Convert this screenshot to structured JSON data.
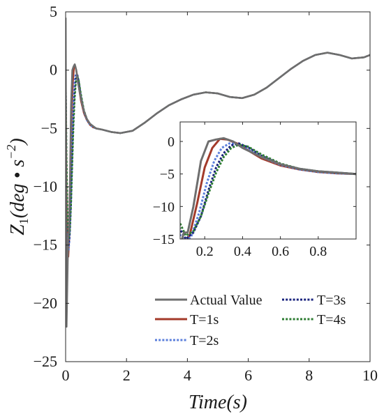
{
  "chart_data": {
    "type": "line",
    "xlabel": "Time(s)",
    "ylabel_main": "Z",
    "ylabel_sub": "1",
    "ylabel_paren": "(deg • s",
    "ylabel_sup": "−2",
    "ylabel_close": ")",
    "xlim": [
      0,
      10
    ],
    "ylim": [
      -25,
      5
    ],
    "xticks": [
      0,
      2,
      4,
      6,
      8,
      10
    ],
    "yticks": [
      -25,
      -20,
      -15,
      -10,
      -5,
      0,
      5
    ],
    "grid": false,
    "legend_position": "bottom-right",
    "series": [
      {
        "name": "Actual Value",
        "color": "#6e6e6e",
        "dash": "solid",
        "x": [
          0,
          0.03,
          0.05,
          0.07,
          0.09,
          0.11,
          0.14,
          0.18,
          0.22,
          0.26,
          0.3,
          0.35,
          0.4,
          0.5,
          0.6,
          0.7,
          0.8,
          0.9,
          1.0,
          1.2,
          1.5,
          1.8,
          2.2,
          2.6,
          3.0,
          3.4,
          3.8,
          4.2,
          4.6,
          5.0,
          5.4,
          5.8,
          6.2,
          6.6,
          7.0,
          7.4,
          7.8,
          8.2,
          8.6,
          9.0,
          9.4,
          9.8,
          10.0
        ],
        "y": [
          4.5,
          -22.0,
          -19.0,
          -16.0,
          -14.0,
          -14.0,
          -10.0,
          -3.0,
          0.0,
          0.3,
          0.5,
          0.0,
          -1.0,
          -2.4,
          -3.5,
          -4.2,
          -4.6,
          -4.8,
          -5.0,
          -5.1,
          -5.3,
          -5.4,
          -5.2,
          -4.5,
          -3.7,
          -3.0,
          -2.5,
          -2.1,
          -1.9,
          -2.0,
          -2.3,
          -2.4,
          -2.1,
          -1.5,
          -0.7,
          0.1,
          0.8,
          1.3,
          1.5,
          1.3,
          1.0,
          1.1,
          1.3
        ]
      },
      {
        "name": "T=1s",
        "color": "#a33a2a",
        "dash": "solid",
        "x": [
          0,
          0.03,
          0.06,
          0.09,
          0.12,
          0.16,
          0.2,
          0.24,
          0.28,
          0.32,
          0.37,
          0.42,
          0.5,
          0.6,
          0.7,
          0.8,
          0.9,
          1.0,
          1.2,
          1.5,
          1.8,
          2.2,
          2.6,
          3.0,
          3.4,
          3.8,
          4.2,
          4.6,
          5.0,
          5.4,
          5.8,
          6.2,
          6.6,
          7.0,
          7.4,
          7.8,
          8.2,
          8.6,
          9.0,
          9.4,
          9.8,
          10.0
        ],
        "y": [
          0.0,
          -10.0,
          -15.0,
          -16.0,
          -14.5,
          -9.5,
          -4.0,
          -1.0,
          0.4,
          0.3,
          -0.3,
          -1.2,
          -2.6,
          -3.7,
          -4.3,
          -4.7,
          -4.9,
          -5.0,
          -5.1,
          -5.3,
          -5.4,
          -5.2,
          -4.5,
          -3.7,
          -3.0,
          -2.5,
          -2.1,
          -1.9,
          -2.0,
          -2.3,
          -2.4,
          -2.1,
          -1.5,
          -0.7,
          0.1,
          0.8,
          1.3,
          1.5,
          1.3,
          1.0,
          1.1,
          1.3
        ]
      },
      {
        "name": "T=2s",
        "color": "#5b7fdb",
        "dash": "dotted",
        "x": [
          0,
          0.03,
          0.06,
          0.1,
          0.13,
          0.17,
          0.21,
          0.25,
          0.29,
          0.33,
          0.37,
          0.42,
          0.5,
          0.6,
          0.7,
          0.8,
          0.9,
          1.0,
          1.2,
          1.5,
          1.8,
          2.2,
          2.6,
          3.0,
          3.4,
          3.8,
          4.2,
          4.6,
          5.0,
          5.4,
          5.8,
          6.2,
          6.6,
          7.0,
          7.4,
          7.8,
          8.2,
          8.6,
          9.0,
          9.4,
          9.8,
          10.0
        ],
        "y": [
          0.0,
          -9.0,
          -14.0,
          -15.5,
          -14.5,
          -11.0,
          -6.5,
          -3.0,
          -1.0,
          -0.3,
          -0.4,
          -1.1,
          -2.4,
          -3.6,
          -4.3,
          -4.7,
          -4.9,
          -5.0,
          -5.1,
          -5.3,
          -5.4,
          -5.2,
          -4.5,
          -3.7,
          -3.0,
          -2.5,
          -2.1,
          -1.9,
          -2.0,
          -2.3,
          -2.4,
          -2.1,
          -1.5,
          -0.7,
          0.1,
          0.8,
          1.3,
          1.5,
          1.3,
          1.0,
          1.1,
          1.3
        ]
      },
      {
        "name": "T=3s",
        "color": "#1a237e",
        "dash": "dotted",
        "x": [
          0,
          0.03,
          0.06,
          0.1,
          0.14,
          0.18,
          0.22,
          0.26,
          0.3,
          0.34,
          0.38,
          0.43,
          0.5,
          0.6,
          0.7,
          0.8,
          0.9,
          1.0,
          1.2,
          1.5,
          1.8,
          2.2,
          2.6,
          3.0,
          3.4,
          3.8,
          4.2,
          4.6,
          5.0,
          5.4,
          5.8,
          6.2,
          6.6,
          7.0,
          7.4,
          7.8,
          8.2,
          8.6,
          9.0,
          9.4,
          9.8,
          10.0
        ],
        "y": [
          0.0,
          -8.0,
          -13.0,
          -15.0,
          -14.0,
          -11.5,
          -7.5,
          -4.0,
          -1.8,
          -0.6,
          -0.3,
          -0.9,
          -2.2,
          -3.5,
          -4.2,
          -4.6,
          -4.8,
          -5.0,
          -5.1,
          -5.3,
          -5.4,
          -5.2,
          -4.5,
          -3.7,
          -3.0,
          -2.5,
          -2.1,
          -1.9,
          -2.0,
          -2.3,
          -2.4,
          -2.1,
          -1.5,
          -0.7,
          0.1,
          0.8,
          1.3,
          1.5,
          1.3,
          1.0,
          1.1,
          1.3
        ]
      },
      {
        "name": "T=4s",
        "color": "#2e7d32",
        "dash": "dotted",
        "x": [
          0,
          0.03,
          0.06,
          0.1,
          0.14,
          0.18,
          0.22,
          0.26,
          0.3,
          0.34,
          0.38,
          0.43,
          0.5,
          0.6,
          0.7,
          0.8,
          0.9,
          1.0,
          1.2,
          1.5,
          1.8,
          2.2,
          2.6,
          3.0,
          3.4,
          3.8,
          4.2,
          4.6,
          5.0,
          5.4,
          5.8,
          6.2,
          6.6,
          7.0,
          7.4,
          7.8,
          8.2,
          8.6,
          9.0,
          9.4,
          9.8,
          10.0
        ],
        "y": [
          0.0,
          -7.0,
          -12.0,
          -14.5,
          -13.8,
          -11.5,
          -8.0,
          -4.8,
          -2.4,
          -1.0,
          -0.5,
          -0.8,
          -2.0,
          -3.4,
          -4.2,
          -4.6,
          -4.8,
          -5.0,
          -5.1,
          -5.3,
          -5.4,
          -5.2,
          -4.5,
          -3.7,
          -3.0,
          -2.5,
          -2.1,
          -1.9,
          -2.0,
          -2.3,
          -2.4,
          -2.1,
          -1.5,
          -0.7,
          0.1,
          0.8,
          1.3,
          1.5,
          1.3,
          1.0,
          1.1,
          1.3
        ]
      }
    ],
    "inset": {
      "xlim": [
        0.07,
        1.0
      ],
      "ylim": [
        -15,
        3
      ],
      "xticks": [
        0.2,
        0.4,
        0.6,
        0.8
      ],
      "yticks": [
        -15,
        -10,
        -5,
        0
      ],
      "xtick_labels": [
        "0.2",
        "0.4",
        "0.6",
        "0.8"
      ]
    }
  }
}
